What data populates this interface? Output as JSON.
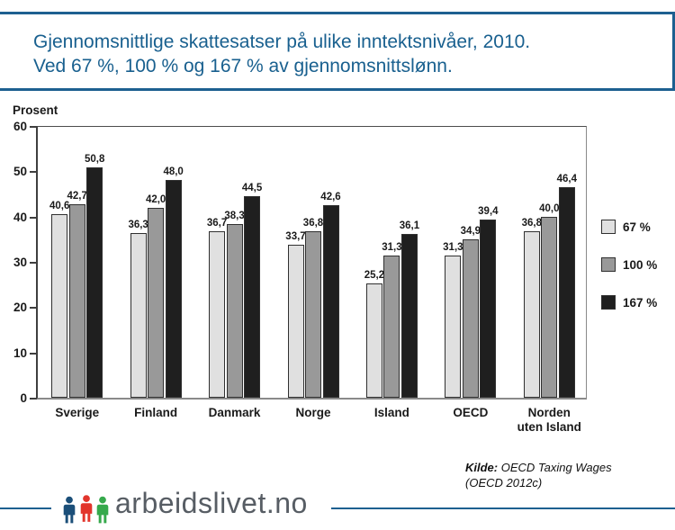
{
  "title": {
    "line1": "Gjennomsnittlige skattesatser på ulike inntektsnivåer, 2010.",
    "line2": "Ved 67 %, 100 % og 167 % av gjennomsnittslønn."
  },
  "chart_data": {
    "type": "bar",
    "ylabel": "Prosent",
    "xlabel": "",
    "ylim": [
      0,
      60
    ],
    "yticks": [
      0,
      10,
      20,
      30,
      40,
      50,
      60
    ],
    "grid": false,
    "legend_position": "right",
    "value_labels": true,
    "decimal_separator": ",",
    "categories": [
      "Sverige",
      "Finland",
      "Danmark",
      "Norge",
      "Island",
      "OECD",
      "Norden uten Island"
    ],
    "categories_display": [
      [
        "Sverige"
      ],
      [
        "Finland"
      ],
      [
        "Danmark"
      ],
      [
        "Norge"
      ],
      [
        "Island"
      ],
      [
        "OECD"
      ],
      [
        "Norden",
        "uten Island"
      ]
    ],
    "series": [
      {
        "name": "67 %",
        "color": "#e0e0e0",
        "values": [
          40.6,
          36.3,
          36.7,
          33.7,
          25.2,
          31.3,
          36.8
        ]
      },
      {
        "name": "100 %",
        "color": "#999999",
        "values": [
          42.7,
          42.0,
          38.3,
          36.8,
          31.3,
          34.9,
          40.0
        ]
      },
      {
        "name": "167 %",
        "color": "#1f1f1f",
        "values": [
          50.8,
          48.0,
          44.5,
          42.6,
          36.1,
          39.4,
          46.4
        ]
      }
    ]
  },
  "source": {
    "label": "Kilde:",
    "line1": "OECD Taxing Wages",
    "line2": "(OECD 2012c)"
  },
  "footer": {
    "logo_text": "arbeidslivet.no",
    "logo_person_colors": {
      "left": "#1b4f79",
      "middle": "#e2352c",
      "right": "#36a94c"
    }
  },
  "colors": {
    "accent_blue": "#1d6090",
    "title_text": "#19608f",
    "logo_text_gray": "#575d64"
  }
}
